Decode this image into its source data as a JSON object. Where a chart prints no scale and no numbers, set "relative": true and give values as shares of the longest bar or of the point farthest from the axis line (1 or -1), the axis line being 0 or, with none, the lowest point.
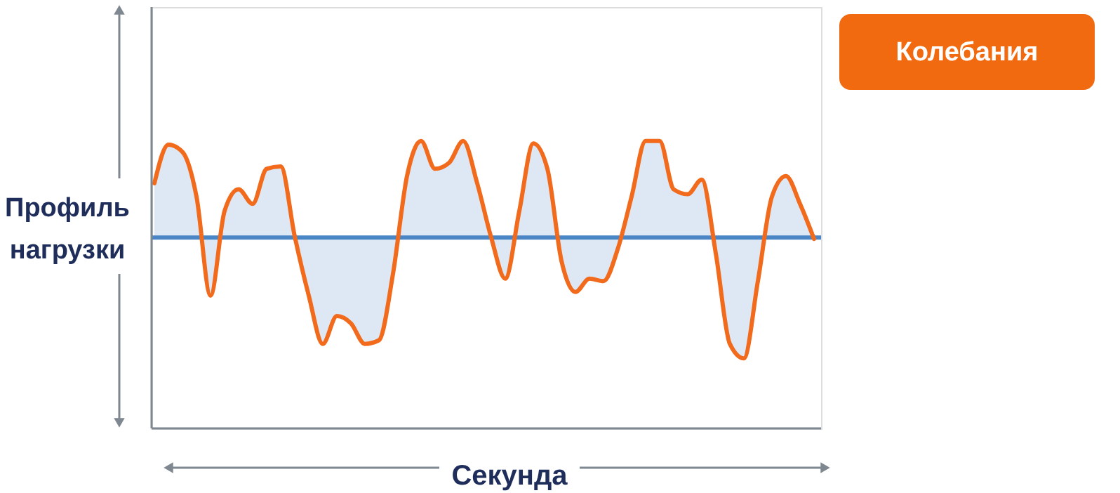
{
  "chart_data": {
    "type": "line",
    "relative": true,
    "xlabel": "Секунда",
    "ylabel": "Профиль нагрузки",
    "annotations": [
      "Колебания"
    ],
    "categories": [
      null,
      null,
      null,
      null,
      null,
      null,
      null,
      null,
      null,
      null,
      null,
      null,
      null,
      null,
      null,
      null,
      null,
      null,
      null,
      null,
      null,
      null,
      null,
      null,
      null,
      null,
      null,
      null,
      null,
      null,
      null,
      null,
      null,
      null,
      null,
      null,
      null,
      null,
      null,
      null,
      null,
      null,
      null,
      null,
      null,
      null,
      null,
      null
    ],
    "series": [
      {
        "color": "#f26a1b",
        "values": [
          0.45,
          0.77,
          0.71,
          0.34,
          -0.48,
          0.22,
          0.4,
          0.28,
          0.57,
          0.59,
          0.01,
          -0.48,
          -0.88,
          -0.65,
          -0.71,
          -0.88,
          -0.85,
          -0.3,
          0.51,
          0.8,
          0.57,
          0.62,
          0.8,
          0.45,
          0,
          -0.34,
          0.22,
          0.78,
          0.57,
          -0.19,
          -0.45,
          -0.34,
          -0.36,
          -0.1,
          0.34,
          0.8,
          0.8,
          0.4,
          0.36,
          0.48,
          -0.13,
          -0.88,
          -1,
          -0.36,
          0.34,
          0.51,
          0.28,
          -0.01
        ]
      }
    ],
    "ref_lines": [
      {
        "axis": "y",
        "value": 0,
        "color": "#4a86c5"
      }
    ],
    "grid": false,
    "line_style": "solid",
    "marker": "none"
  }
}
